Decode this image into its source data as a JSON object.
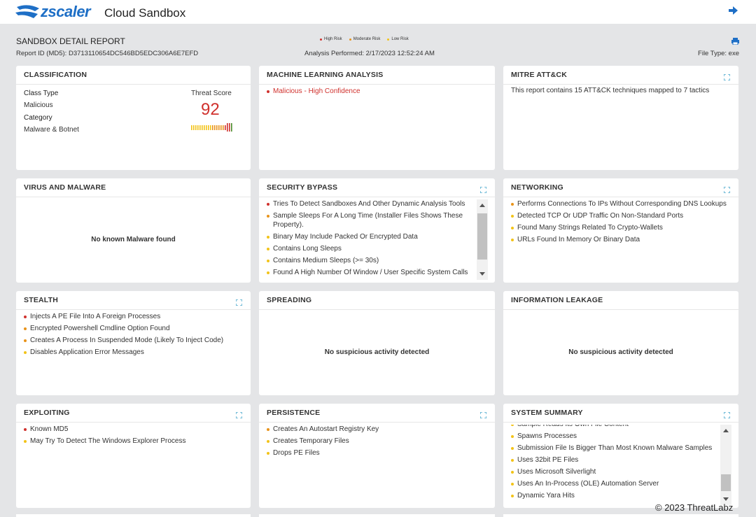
{
  "header": {
    "logo": "zscaler",
    "product": "Cloud Sandbox"
  },
  "report": {
    "title": "SANDBOX DETAIL REPORT",
    "report_id": "Report ID (MD5): D3713110654DC546BD5EDC306A6E7EFD",
    "analysis": "Analysis Performed: 2/17/2023 12:52:24 AM",
    "file_type": "File Type: exe",
    "legend": [
      {
        "label": "High Risk",
        "color": "#d0312d"
      },
      {
        "label": "Moderate Risk",
        "color": "#e8931a"
      },
      {
        "label": "Low Risk",
        "color": "#f2c318"
      }
    ]
  },
  "classification": {
    "title": "CLASSIFICATION",
    "class_type_label": "Class Type",
    "class_type": "Malicious",
    "category_label": "Category",
    "category": "Malware & Botnet",
    "threat_score_label": "Threat Score",
    "threat_score": 92
  },
  "panels": [
    {
      "title": "MACHINE LEARNING ANALYSIS",
      "expandable": false,
      "items": [
        {
          "text": "Malicious - High Confidence",
          "color": "#d0312d"
        }
      ]
    },
    {
      "title": "MITRE ATT&CK",
      "expandable": true,
      "message": "This report contains 15 ATT&CK techniques mapped to 7 tactics"
    },
    {
      "title": "VIRUS AND MALWARE",
      "expandable": false,
      "message": "No known Malware found"
    },
    {
      "title": "SECURITY BYPASS",
      "expandable": true,
      "scroll": true,
      "items": [
        {
          "text": "Tries To Detect Sandboxes And Other Dynamic Analysis Tools",
          "color": "#d0312d"
        },
        {
          "text": "Sample Sleeps For A Long Time (Installer Files Shows These Property).",
          "color": "#e8931a"
        },
        {
          "text": "Binary May Include Packed Or Encrypted Data",
          "color": "#f2c318"
        },
        {
          "text": "Contains Long Sleeps",
          "color": "#f2c318"
        },
        {
          "text": "Contains Medium Sleeps (>= 30s)",
          "color": "#f2c318"
        },
        {
          "text": "Found A High Number Of Window / User Specific System Calls",
          "color": "#f2c318"
        }
      ]
    },
    {
      "title": "NETWORKING",
      "expandable": true,
      "items": [
        {
          "text": "Performs Connections To IPs Without Corresponding DNS Lookups",
          "color": "#e8931a"
        },
        {
          "text": "Detected TCP Or UDP Traffic On Non-Standard Ports",
          "color": "#f2c318"
        },
        {
          "text": "Found Many Strings Related To Crypto-Wallets",
          "color": "#f2c318"
        },
        {
          "text": "URLs Found In Memory Or Binary Data",
          "color": "#f2c318"
        }
      ]
    },
    {
      "title": "STEALTH",
      "expandable": true,
      "items": [
        {
          "text": "Injects A PE File Into A Foreign Processes",
          "color": "#d0312d"
        },
        {
          "text": "Encrypted Powershell Cmdline Option Found",
          "color": "#e8931a"
        },
        {
          "text": "Creates A Process In Suspended Mode (Likely To Inject Code)",
          "color": "#e8931a"
        },
        {
          "text": "Disables Application Error Messages",
          "color": "#f2c318"
        }
      ]
    },
    {
      "title": "SPREADING",
      "expandable": false,
      "message": "No suspicious activity detected"
    },
    {
      "title": "INFORMATION LEAKAGE",
      "expandable": false,
      "message": "No suspicious activity detected"
    },
    {
      "title": "EXPLOITING",
      "expandable": true,
      "items": [
        {
          "text": "Known MD5",
          "color": "#d0312d"
        },
        {
          "text": "May Try To Detect The Windows Explorer Process",
          "color": "#f2c318"
        }
      ]
    },
    {
      "title": "PERSISTENCE",
      "expandable": true,
      "items": [
        {
          "text": "Creates An Autostart Registry Key",
          "color": "#e8931a"
        },
        {
          "text": "Creates Temporary Files",
          "color": "#f2c318"
        },
        {
          "text": "Drops PE Files",
          "color": "#f2c318"
        }
      ]
    },
    {
      "title": "SYSTEM SUMMARY",
      "expandable": true,
      "scroll": true,
      "items": [
        {
          "text": "Sample Reads Its Own File Content",
          "color": "#f2c318"
        },
        {
          "text": "Spawns Processes",
          "color": "#f2c318"
        },
        {
          "text": "Submission File Is Bigger Than Most Known Malware Samples",
          "color": "#f2c318"
        },
        {
          "text": "Uses 32bit PE Files",
          "color": "#f2c318"
        },
        {
          "text": "Uses Microsoft Silverlight",
          "color": "#f2c318"
        },
        {
          "text": "Uses An In-Process (OLE) Automation Server",
          "color": "#f2c318"
        },
        {
          "text": "Dynamic Yara Hits",
          "color": "#f2c318"
        }
      ]
    }
  ],
  "footer": "© 2023 ThreatLabz"
}
